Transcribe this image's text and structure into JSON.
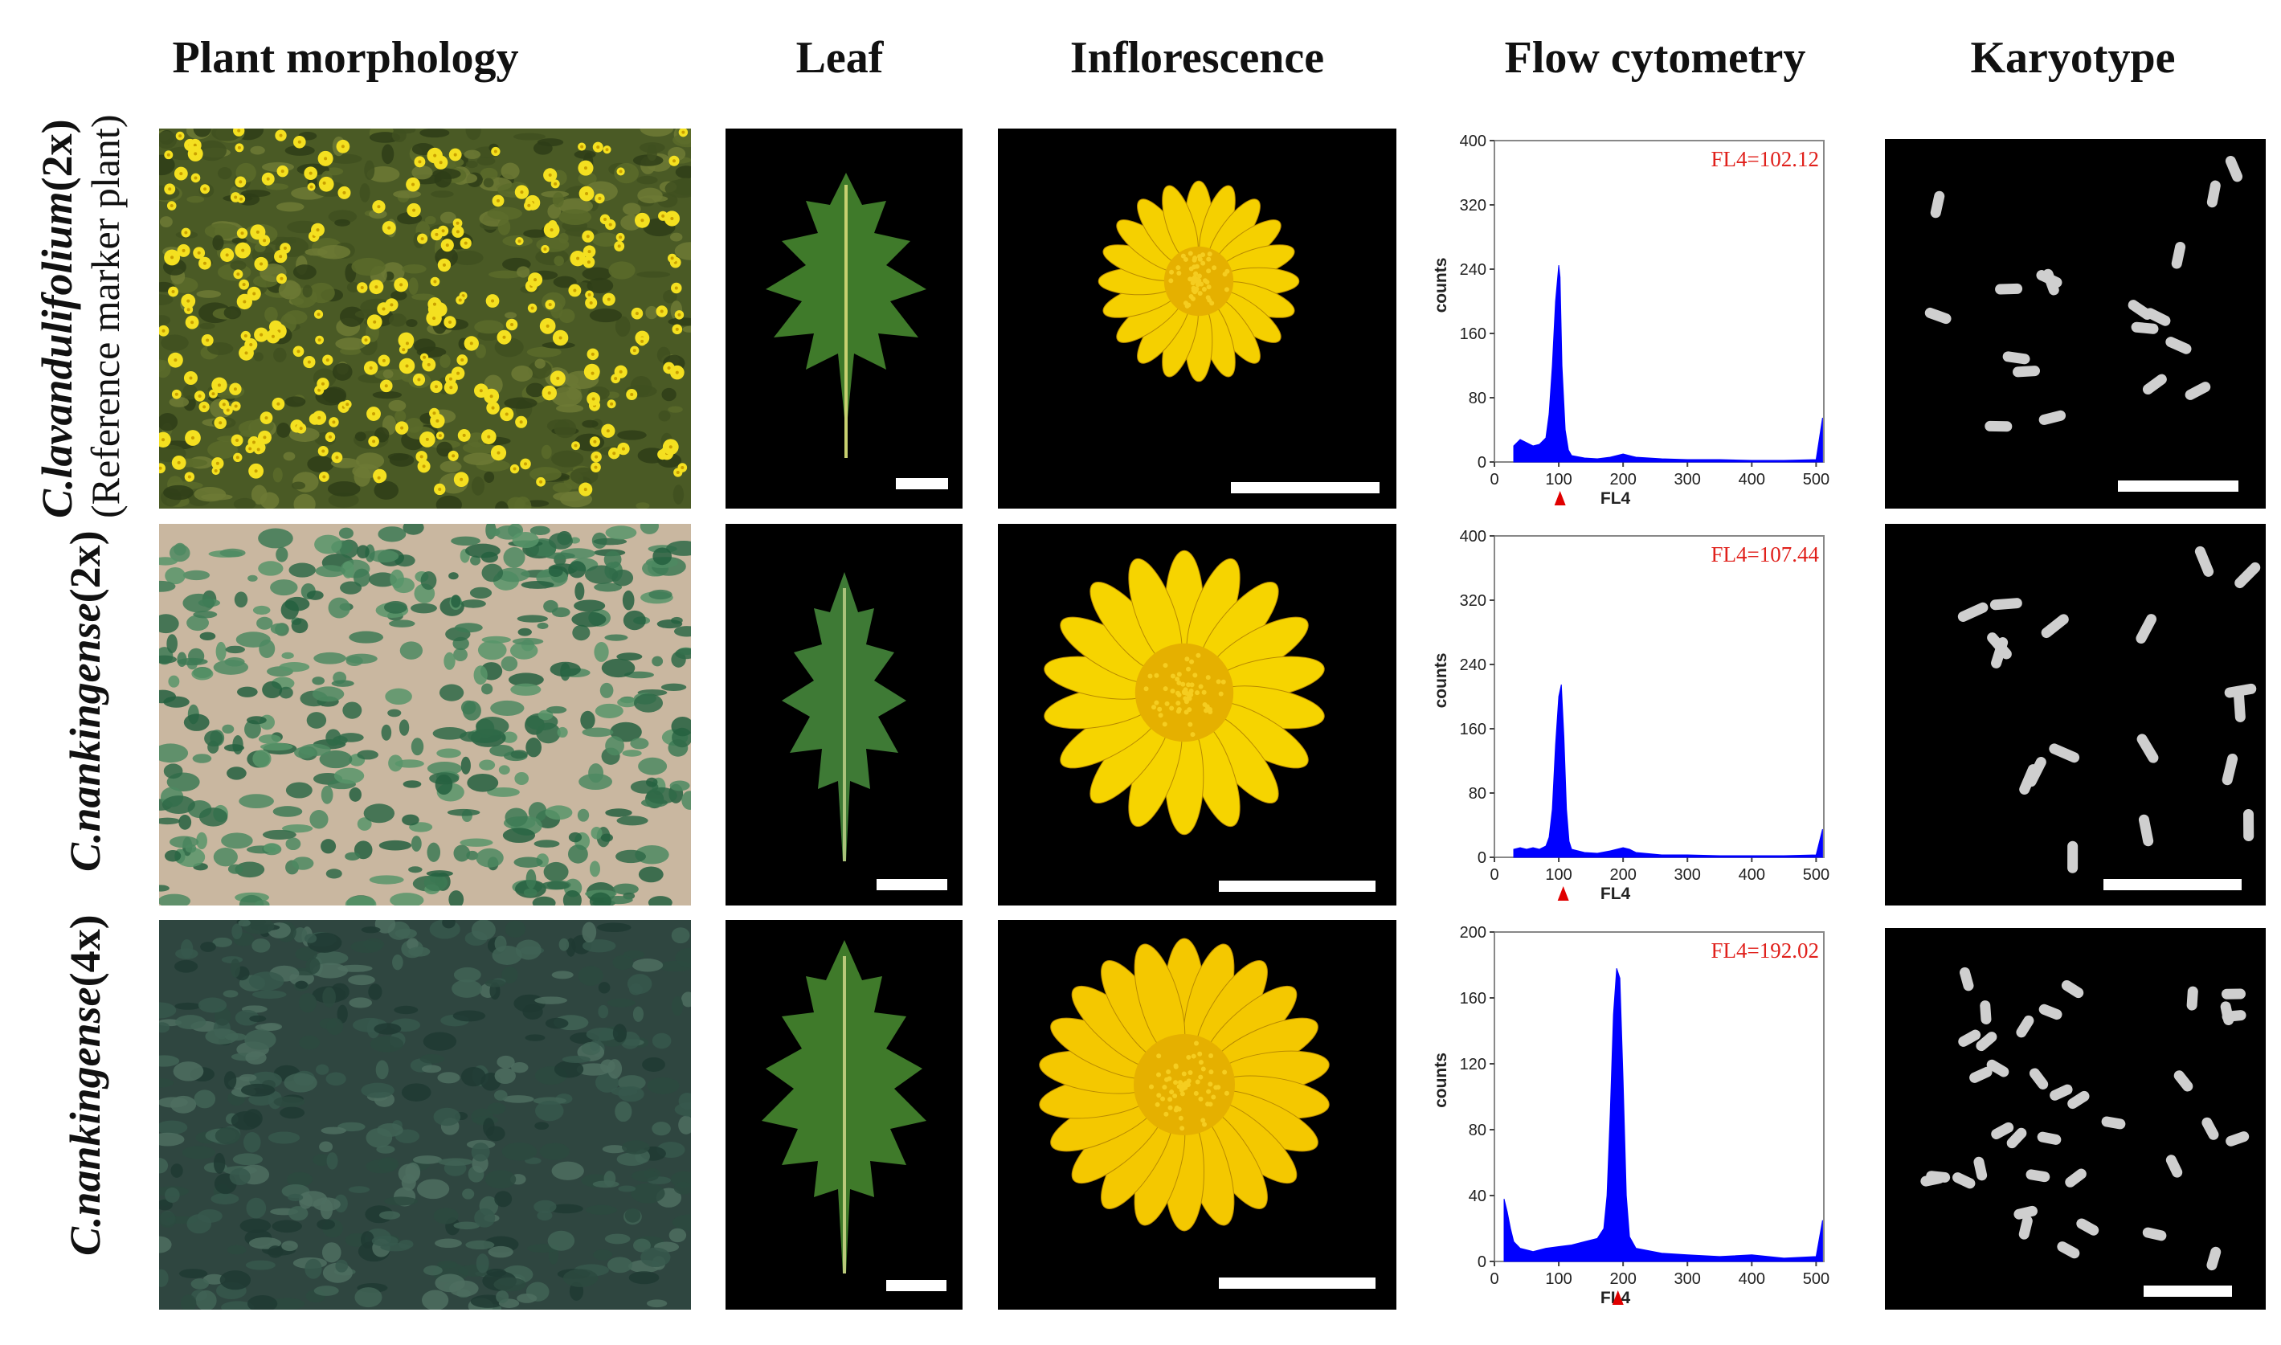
{
  "columns": {
    "plant": "Plant morphology",
    "leaf": "Leaf",
    "inflorescence": "Inflorescence",
    "flow": "Flow cytometry",
    "karyotype": "Karyotype"
  },
  "rows": [
    {
      "species_italic": "C.lavandulifolium",
      "ploidy": "(2x)",
      "note": "(Reference marker plant)"
    },
    {
      "species_italic": "C.nankingense",
      "ploidy": "(2x)",
      "note": ""
    },
    {
      "species_italic": "C.nankingense",
      "ploidy": "(4x)",
      "note": ""
    }
  ],
  "chart_data": [
    {
      "type": "histogram",
      "annotation": "FL4=102.12",
      "xlabel": "FL4",
      "ylabel": "counts",
      "xlim": [
        0,
        512
      ],
      "ylim": [
        0,
        400
      ],
      "xticks": [
        0,
        100,
        200,
        300,
        400,
        500
      ],
      "yticks": [
        0,
        80,
        160,
        240,
        320,
        400
      ],
      "peak_marker": 102,
      "x": [
        30,
        40,
        50,
        60,
        70,
        80,
        85,
        90,
        95,
        100,
        102,
        105,
        110,
        115,
        120,
        140,
        160,
        180,
        200,
        220,
        260,
        300,
        350,
        400,
        450,
        500,
        510
      ],
      "y": [
        20,
        28,
        24,
        20,
        22,
        30,
        60,
        120,
        200,
        245,
        230,
        120,
        40,
        15,
        8,
        5,
        4,
        6,
        10,
        6,
        4,
        3,
        3,
        2,
        2,
        3,
        55
      ]
    },
    {
      "type": "histogram",
      "annotation": "FL4=107.44",
      "xlabel": "FL4",
      "ylabel": "counts",
      "xlim": [
        0,
        512
      ],
      "ylim": [
        0,
        400
      ],
      "xticks": [
        0,
        100,
        200,
        300,
        400,
        500
      ],
      "yticks": [
        0,
        80,
        160,
        240,
        320,
        400
      ],
      "peak_marker": 107,
      "x": [
        30,
        40,
        50,
        60,
        70,
        80,
        85,
        90,
        95,
        100,
        104,
        108,
        112,
        116,
        120,
        140,
        160,
        180,
        200,
        210,
        220,
        260,
        300,
        350,
        400,
        450,
        500,
        510
      ],
      "y": [
        10,
        12,
        10,
        12,
        10,
        14,
        25,
        60,
        140,
        200,
        215,
        150,
        60,
        20,
        10,
        6,
        5,
        8,
        12,
        10,
        6,
        3,
        3,
        2,
        2,
        2,
        3,
        35
      ]
    },
    {
      "type": "histogram",
      "annotation": "FL4=192.02",
      "xlabel": "FL4",
      "ylabel": "counts",
      "xlim": [
        0,
        512
      ],
      "ylim": [
        0,
        200
      ],
      "xticks": [
        0,
        100,
        200,
        300,
        400,
        500
      ],
      "yticks": [
        0,
        40,
        80,
        120,
        160,
        200
      ],
      "peak_marker": 192,
      "x": [
        15,
        20,
        25,
        30,
        40,
        60,
        80,
        100,
        120,
        140,
        160,
        170,
        175,
        180,
        185,
        190,
        195,
        200,
        205,
        210,
        220,
        260,
        300,
        350,
        400,
        450,
        500,
        510
      ],
      "y": [
        38,
        30,
        20,
        12,
        8,
        6,
        8,
        9,
        10,
        12,
        14,
        20,
        40,
        90,
        150,
        178,
        172,
        110,
        40,
        15,
        8,
        5,
        4,
        3,
        4,
        2,
        3,
        25
      ]
    }
  ],
  "colors": {
    "histogram": "#0000ff",
    "annotation": "#e0201b",
    "marker": "#e00000",
    "leaf": "#3f7a2a",
    "flower": "#f2c200",
    "flower_center": "#e0a800"
  }
}
